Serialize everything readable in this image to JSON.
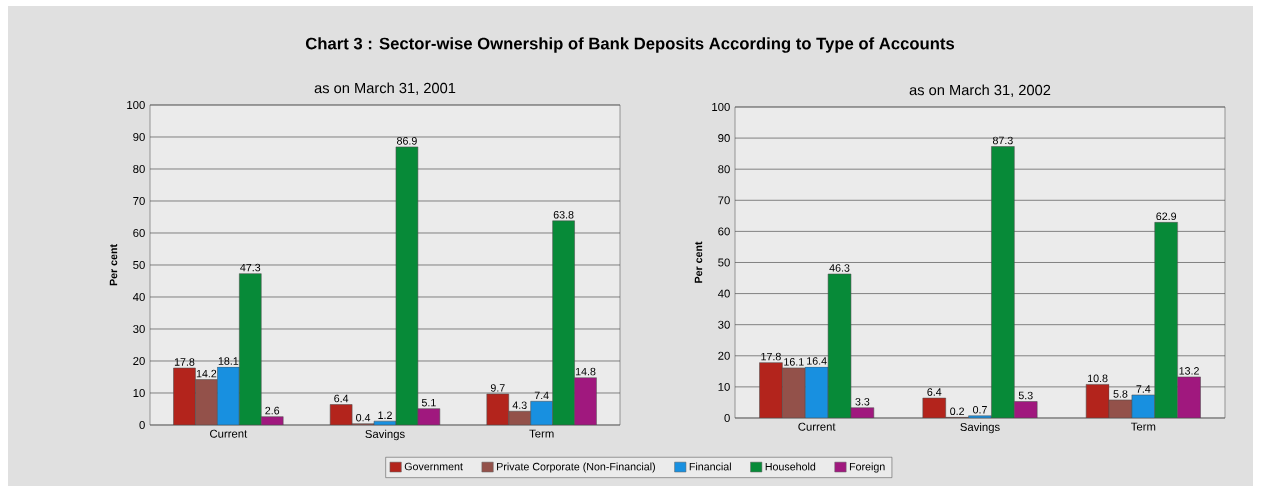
{
  "chart_data": [
    {
      "type": "bar",
      "title": "Chart 3 : Sector-wise Ownership of Bank Deposits  According to Type of Accounts",
      "subtitle": "as on March 31, 2001",
      "ylabel": "Per cent",
      "categories": [
        "Current",
        "Savings",
        "Term"
      ],
      "series": [
        {
          "name": "Government",
          "color": "#b3241c",
          "values": [
            17.8,
            6.4,
            9.7
          ]
        },
        {
          "name": "Private Corporate (Non-Financial)",
          "color": "#93514a",
          "values": [
            14.2,
            0.4,
            4.3
          ]
        },
        {
          "name": "Financial",
          "color": "#1890e0",
          "values": [
            18.1,
            1.2,
            7.4
          ]
        },
        {
          "name": "Household",
          "color": "#078a38",
          "values": [
            47.3,
            86.9,
            63.8
          ]
        },
        {
          "name": "Foreign",
          "color": "#a0187e",
          "values": [
            2.6,
            5.1,
            14.8
          ]
        }
      ],
      "ylim": [
        0,
        100
      ],
      "yticks": [
        0,
        10,
        20,
        30,
        40,
        50,
        60,
        70,
        80,
        90,
        100
      ],
      "grid": "y",
      "data_labels": true,
      "legend": "bottom"
    },
    {
      "type": "bar",
      "subtitle": "as on March 31, 2002",
      "ylabel": "Per cent",
      "categories": [
        "Current",
        "Savings",
        "Term"
      ],
      "series": [
        {
          "color": "#b3241c",
          "values": [
            17.8,
            6.4,
            10.8
          ]
        },
        {
          "color": "#93514a",
          "values": [
            16.1,
            0.2,
            5.8
          ]
        },
        {
          "color": "#1890e0",
          "values": [
            16.4,
            0.7,
            7.4
          ]
        },
        {
          "color": "#078a38",
          "values": [
            46.3,
            87.3,
            62.9
          ]
        },
        {
          "color": "#a0187e",
          "values": [
            3.3,
            5.3,
            13.2
          ]
        }
      ],
      "ylim": [
        0,
        100
      ],
      "yticks": [
        0,
        10,
        20,
        30,
        40,
        50,
        60,
        70,
        80,
        90,
        100
      ],
      "grid": "y",
      "data_labels": true
    }
  ]
}
